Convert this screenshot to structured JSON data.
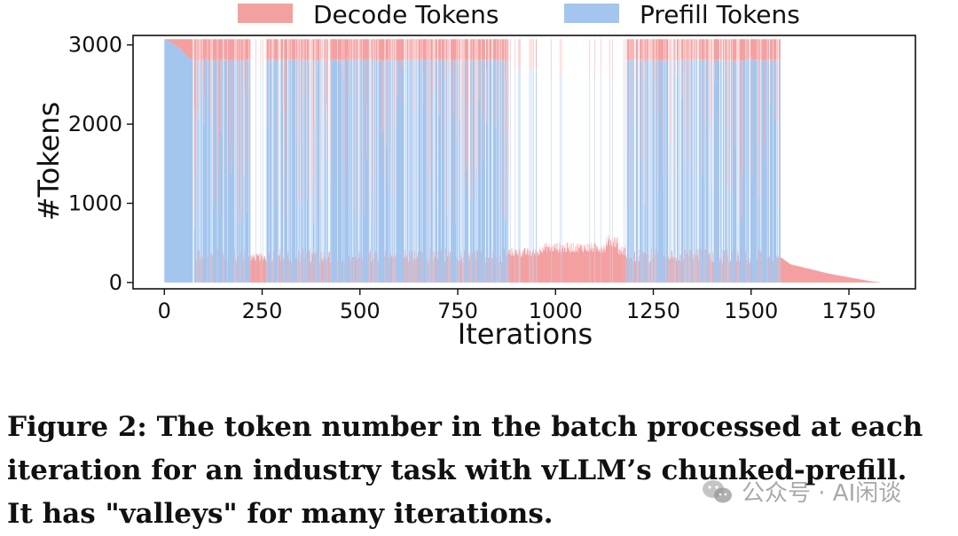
{
  "chart_data": {
    "type": "area",
    "stacked": true,
    "xlabel": "Iterations",
    "ylabel": "#Tokens",
    "xlim": [
      -80,
      1920
    ],
    "ylim": [
      -80,
      3120
    ],
    "xticks": [
      0,
      250,
      500,
      750,
      1000,
      1250,
      1500,
      1750
    ],
    "yticks": [
      0,
      1000,
      2000,
      3000
    ],
    "grid": false,
    "legend": {
      "position": "top",
      "orientation": "horizontal"
    },
    "series": [
      {
        "name": "Decode Tokens",
        "color": "#f4a0a0"
      },
      {
        "name": "Prefill Tokens",
        "color": "#a3c5ee"
      }
    ],
    "token_budget": 3072,
    "decode_levels": {
      "ramp_at_start": [
        [
          0,
          0
        ],
        [
          20,
          50
        ],
        [
          40,
          120
        ],
        [
          60,
          230
        ],
        [
          72,
          260
        ]
      ],
      "spikes_1000": [
        [
          20,
          260,
          1000
        ],
        [
          76,
          880,
          950
        ],
        [
          950,
          1160,
          1500
        ],
        [
          1175,
          1400,
          1650
        ],
        [
          1420,
          1570,
          1950
        ]
      ],
      "tail": [
        [
          1575,
          320
        ],
        [
          1600,
          230
        ],
        [
          1650,
          170
        ],
        [
          1700,
          110
        ],
        [
          1750,
          65
        ],
        [
          1800,
          20
        ],
        [
          1825,
          5
        ]
      ]
    },
    "valley_segments": [
      {
        "from": 220,
        "to": 260,
        "decode": 320
      },
      {
        "from": 880,
        "to": 960,
        "decode": 380
      },
      {
        "from": 960,
        "to": 1130,
        "decode": 440
      },
      {
        "from": 1130,
        "to": 1160,
        "decode": 520
      },
      {
        "from": 1160,
        "to": 1180,
        "decode": 400
      }
    ],
    "dense_ranges": [
      [
        76,
        220
      ],
      [
        260,
        880
      ],
      [
        1160,
        1575
      ]
    ],
    "full_prefill_level": 2810
  },
  "caption": {
    "line1": "Figure 2: The token number in the batch processed at each",
    "line2": "iteration for an industry task with vLLM’s chunked-prefill.",
    "line3": "It has \"valleys\" for many iterations."
  },
  "watermark": {
    "text": "公众号 · AI闲谈",
    "icon": "wechat-icon"
  }
}
